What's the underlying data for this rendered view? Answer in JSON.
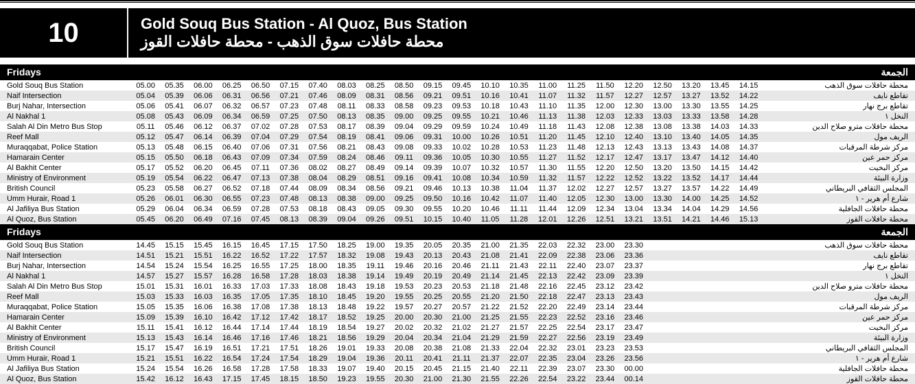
{
  "route_number": "10",
  "title_en": "Gold Souq Bus Station - Al Quoz, Bus Station",
  "title_ar": "محطة حافلات سوق الذهب - محطة حافلات القوز",
  "day_label_en": "Fridays",
  "day_label_ar": "الجمعة",
  "stops_en": [
    "Gold Souq Bus Station",
    "Naif Intersection",
    "Burj Nahar, Intersection",
    "Al Nakhal 1",
    "Salah Al Din Metro Bus Stop",
    "Reef Mall",
    "Muraqqabat, Police Station",
    "Hamarain Center",
    "Al Bakhit Center",
    "Ministry of Environment",
    "British Council",
    "Umm Hurair, Road 1",
    "Al Jafiliya Bus Station",
    "Al Quoz, Bus Station"
  ],
  "stops_ar": [
    "محطة حافلات سوق الذهب",
    "تقاطع نايف",
    "تقاطع برج نهار",
    "النخل ١",
    "محطة حافلات مترو صلاح الدين",
    "الريف مول",
    "مركز شرطة المرقبات",
    "مركز حمر عين",
    "مركز البخيت",
    "وزارة البيئة",
    "المجلس الثقافي البريطاني",
    "شارع أم هرير - ١",
    "محطة حافلات الجافلية",
    "محطة حافلات القوز"
  ],
  "blocks": [
    {
      "cols": 23,
      "rows": [
        [
          "05.00",
          "05.35",
          "06.00",
          "06.25",
          "06.50",
          "07.15",
          "07.40",
          "08.03",
          "08.25",
          "08.50",
          "09.15",
          "09.45",
          "10.10",
          "10.35",
          "11.00",
          "11.25",
          "11.50",
          "12.20",
          "12.50",
          "13.20",
          "13.45",
          "14.15",
          ""
        ],
        [
          "05.04",
          "05.39",
          "06.06",
          "06.31",
          "06.56",
          "07.21",
          "07.46",
          "08.09",
          "08.31",
          "08.56",
          "09.21",
          "09.51",
          "10.16",
          "10.41",
          "11.07",
          "11.32",
          "11.57",
          "12.27",
          "12.57",
          "13.27",
          "13.52",
          "14.22",
          ""
        ],
        [
          "05.06",
          "05.41",
          "06.07",
          "06.32",
          "06.57",
          "07.23",
          "07.48",
          "08.11",
          "08.33",
          "08.58",
          "09.23",
          "09.53",
          "10.18",
          "10.43",
          "11.10",
          "11.35",
          "12.00",
          "12.30",
          "13.00",
          "13.30",
          "13.55",
          "14.25",
          ""
        ],
        [
          "05.08",
          "05.43",
          "06.09",
          "06.34",
          "06.59",
          "07.25",
          "07.50",
          "08.13",
          "08.35",
          "09.00",
          "09.25",
          "09.55",
          "10.21",
          "10.46",
          "11.13",
          "11.38",
          "12.03",
          "12.33",
          "13.03",
          "13.33",
          "13.58",
          "14.28",
          ""
        ],
        [
          "05.11",
          "05.46",
          "06.12",
          "06.37",
          "07.02",
          "07.28",
          "07.53",
          "08.17",
          "08.39",
          "09.04",
          "09.29",
          "09.59",
          "10.24",
          "10.49",
          "11.18",
          "11.43",
          "12.08",
          "12.38",
          "13.08",
          "13.38",
          "14.03",
          "14.33",
          ""
        ],
        [
          "05.12",
          "05.47",
          "06.14",
          "06.39",
          "07.04",
          "07.29",
          "07.54",
          "08.19",
          "08.41",
          "09.06",
          "09.31",
          "10.00",
          "10.26",
          "10.51",
          "11.20",
          "11.45",
          "12.10",
          "12.40",
          "13.10",
          "13.40",
          "14.05",
          "14.35",
          ""
        ],
        [
          "05.13",
          "05.48",
          "06.15",
          "06.40",
          "07.06",
          "07.31",
          "07.56",
          "08.21",
          "08.43",
          "09.08",
          "09.33",
          "10.02",
          "10.28",
          "10.53",
          "11.23",
          "11.48",
          "12.13",
          "12.43",
          "13.13",
          "13.43",
          "14.08",
          "14.37",
          ""
        ],
        [
          "05.15",
          "05.50",
          "06.18",
          "06.43",
          "07.09",
          "07.34",
          "07.59",
          "08.24",
          "08.46",
          "09.11",
          "09.36",
          "10.05",
          "10.30",
          "10.55",
          "11.27",
          "11.52",
          "12.17",
          "12.47",
          "13.17",
          "13.47",
          "14.12",
          "14.40",
          ""
        ],
        [
          "05.17",
          "05.52",
          "06.20",
          "06.45",
          "07.11",
          "07.36",
          "08.02",
          "08.27",
          "08.49",
          "09.14",
          "09.39",
          "10.07",
          "10.32",
          "10.57",
          "11.30",
          "11.55",
          "12.20",
          "12.50",
          "13.20",
          "13.50",
          "14.15",
          "14.42",
          ""
        ],
        [
          "05.19",
          "05.54",
          "06.22",
          "06.47",
          "07.13",
          "07.38",
          "08.04",
          "08.29",
          "08.51",
          "09.16",
          "09.41",
          "10.08",
          "10.34",
          "10.59",
          "11.32",
          "11.57",
          "12.22",
          "12.52",
          "13.22",
          "13.52",
          "14.17",
          "14.44",
          ""
        ],
        [
          "05.23",
          "05.58",
          "06.27",
          "06.52",
          "07.18",
          "07.44",
          "08.09",
          "08.34",
          "08.56",
          "09.21",
          "09.46",
          "10.13",
          "10.38",
          "11.04",
          "11.37",
          "12.02",
          "12.27",
          "12.57",
          "13.27",
          "13.57",
          "14.22",
          "14.49",
          ""
        ],
        [
          "05.26",
          "06.01",
          "06.30",
          "06.55",
          "07.23",
          "07.48",
          "08.13",
          "08.38",
          "09.00",
          "09.25",
          "09.50",
          "10.16",
          "10.42",
          "11.07",
          "11.40",
          "12.05",
          "12.30",
          "13.00",
          "13.30",
          "14.00",
          "14.25",
          "14.52",
          ""
        ],
        [
          "05.29",
          "06.04",
          "06.34",
          "06.59",
          "07.28",
          "07.53",
          "08.18",
          "08.43",
          "09.05",
          "09.30",
          "09.55",
          "10.20",
          "10.46",
          "11.11",
          "11.44",
          "12.09",
          "12.34",
          "13.04",
          "13.34",
          "14.04",
          "14.29",
          "14.56",
          ""
        ],
        [
          "05.45",
          "06.20",
          "06.49",
          "07.16",
          "07.45",
          "08.13",
          "08.39",
          "09.04",
          "09.26",
          "09.51",
          "10.15",
          "10.40",
          "11.05",
          "11.28",
          "12.01",
          "12.26",
          "12.51",
          "13.21",
          "13.51",
          "14.21",
          "14.46",
          "15.13",
          ""
        ]
      ]
    },
    {
      "cols": 23,
      "rows": [
        [
          "14.45",
          "15.15",
          "15.45",
          "16.15",
          "16.45",
          "17.15",
          "17.50",
          "18.25",
          "19.00",
          "19.35",
          "20.05",
          "20.35",
          "21.00",
          "21.35",
          "22.03",
          "22.32",
          "23.00",
          "23.30",
          "",
          "",
          "",
          "",
          ""
        ],
        [
          "14.51",
          "15.21",
          "15.51",
          "16.22",
          "16.52",
          "17.22",
          "17.57",
          "18.32",
          "19.08",
          "19.43",
          "20.13",
          "20.43",
          "21.08",
          "21.41",
          "22.09",
          "22.38",
          "23.06",
          "23.36",
          "",
          "",
          "",
          "",
          ""
        ],
        [
          "14.54",
          "15.24",
          "15.54",
          "16.25",
          "16.55",
          "17.25",
          "18.00",
          "18.35",
          "19.11",
          "19.46",
          "20.16",
          "20.46",
          "21.11",
          "21.43",
          "22.11",
          "22.40",
          "23.07",
          "23.37",
          "",
          "",
          "",
          "",
          ""
        ],
        [
          "14.57",
          "15.27",
          "15.57",
          "16.28",
          "16.58",
          "17.28",
          "18.03",
          "18.38",
          "19.14",
          "19.49",
          "20.19",
          "20.49",
          "21.14",
          "21.45",
          "22.13",
          "22.42",
          "23.09",
          "23.39",
          "",
          "",
          "",
          "",
          ""
        ],
        [
          "15.01",
          "15.31",
          "16.01",
          "16.33",
          "17.03",
          "17.33",
          "18.08",
          "18.43",
          "19.18",
          "19.53",
          "20.23",
          "20.53",
          "21.18",
          "21.48",
          "22.16",
          "22.45",
          "23.12",
          "23.42",
          "",
          "",
          "",
          "",
          ""
        ],
        [
          "15.03",
          "15.33",
          "16.03",
          "16.35",
          "17.05",
          "17.35",
          "18.10",
          "18.45",
          "19.20",
          "19.55",
          "20.25",
          "20.55",
          "21.20",
          "21.50",
          "22.18",
          "22.47",
          "23.13",
          "23.43",
          "",
          "",
          "",
          "",
          ""
        ],
        [
          "15.05",
          "15.35",
          "16.06",
          "16.38",
          "17.08",
          "17.38",
          "18.13",
          "18.48",
          "19.22",
          "19.57",
          "20.27",
          "20.57",
          "21.22",
          "21.52",
          "22.20",
          "22.49",
          "23.14",
          "23.44",
          "",
          "",
          "",
          "",
          ""
        ],
        [
          "15.09",
          "15.39",
          "16.10",
          "16.42",
          "17.12",
          "17.42",
          "18.17",
          "18.52",
          "19.25",
          "20.00",
          "20.30",
          "21.00",
          "21.25",
          "21.55",
          "22.23",
          "22.52",
          "23.16",
          "23.46",
          "",
          "",
          "",
          "",
          ""
        ],
        [
          "15.11",
          "15.41",
          "16.12",
          "16.44",
          "17.14",
          "17.44",
          "18.19",
          "18.54",
          "19.27",
          "20.02",
          "20.32",
          "21.02",
          "21.27",
          "21.57",
          "22.25",
          "22.54",
          "23.17",
          "23.47",
          "",
          "",
          "",
          "",
          ""
        ],
        [
          "15.13",
          "15.43",
          "16.14",
          "16.46",
          "17.16",
          "17.46",
          "18.21",
          "18.56",
          "19.29",
          "20.04",
          "20.34",
          "21.04",
          "21.29",
          "21.59",
          "22.27",
          "22.56",
          "23.19",
          "23.49",
          "",
          "",
          "",
          "",
          ""
        ],
        [
          "15.17",
          "15.47",
          "16.19",
          "16.51",
          "17.21",
          "17.51",
          "18.26",
          "19.01",
          "19.33",
          "20.08",
          "20.38",
          "21.08",
          "21.33",
          "22.04",
          "22.32",
          "23.01",
          "23.23",
          "23.53",
          "",
          "",
          "",
          "",
          ""
        ],
        [
          "15.21",
          "15.51",
          "16.22",
          "16.54",
          "17.24",
          "17.54",
          "18.29",
          "19.04",
          "19.36",
          "20.11",
          "20.41",
          "21.11",
          "21.37",
          "22.07",
          "22.35",
          "23.04",
          "23.26",
          "23.56",
          "",
          "",
          "",
          "",
          ""
        ],
        [
          "15.24",
          "15.54",
          "16.26",
          "16.58",
          "17.28",
          "17.58",
          "18.33",
          "19.07",
          "19.40",
          "20.15",
          "20.45",
          "21.15",
          "21.40",
          "22.11",
          "22.39",
          "23.07",
          "23.30",
          "00.00",
          "",
          "",
          "",
          "",
          ""
        ],
        [
          "15.42",
          "16.12",
          "16.43",
          "17.15",
          "17.45",
          "18.15",
          "18.50",
          "19.23",
          "19.55",
          "20.30",
          "21.00",
          "21.30",
          "21.55",
          "22.26",
          "22.54",
          "23.22",
          "23.44",
          "00.14",
          "",
          "",
          "",
          "",
          ""
        ]
      ]
    }
  ]
}
